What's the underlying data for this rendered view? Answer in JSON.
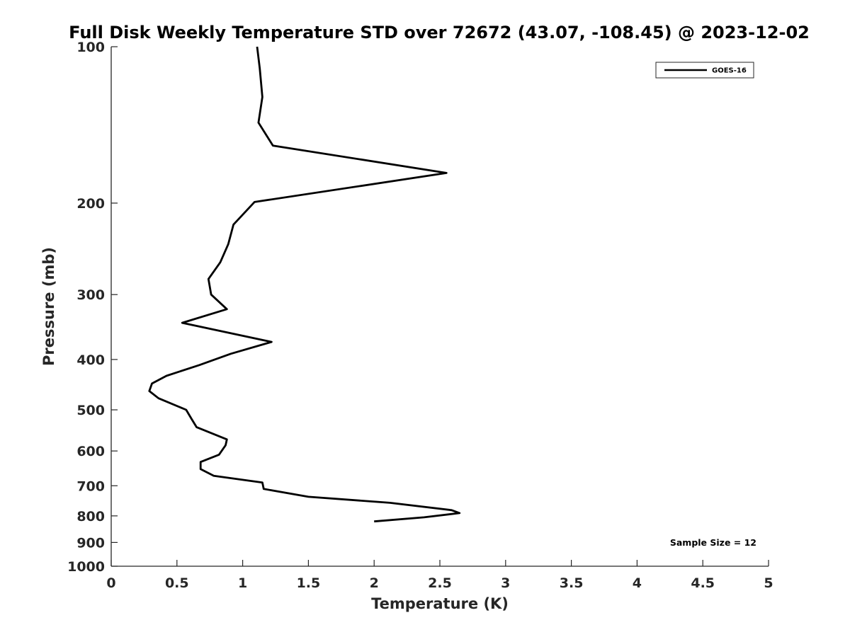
{
  "chart_data": {
    "type": "line",
    "title": "Full Disk Weekly Temperature STD over 72672 (43.07, -108.45) @ 2023-12-02",
    "xlabel": "Temperature (K)",
    "ylabel": "Pressure (mb)",
    "xlim": [
      0,
      5
    ],
    "ylim": [
      100,
      1000
    ],
    "y_scale": "log",
    "y_reversed": true,
    "x_ticks": [
      "0",
      "0.5",
      "1",
      "1.5",
      "2",
      "2.5",
      "3",
      "3.5",
      "4",
      "4.5",
      "5"
    ],
    "y_ticks": [
      "100",
      "200",
      "300",
      "400",
      "500",
      "600",
      "700",
      "800",
      "900",
      "1000"
    ],
    "grid": false,
    "legend_position": "top-right",
    "series": [
      {
        "name": "GOES-16",
        "color": "#000000",
        "x": [
          1.11,
          1.13,
          1.15,
          1.12,
          1.23,
          2.55,
          1.09,
          0.93,
          0.89,
          0.83,
          0.74,
          0.76,
          0.88,
          0.54,
          1.22,
          0.91,
          0.67,
          0.42,
          0.31,
          0.29,
          0.36,
          0.57,
          0.61,
          0.65,
          0.88,
          0.87,
          0.82,
          0.68,
          0.68,
          0.78,
          1.15,
          1.16,
          1.5,
          2.12,
          2.59,
          2.65,
          2.38,
          2.0
        ],
        "y": [
          100,
          110,
          125,
          140,
          155,
          175,
          199,
          220,
          240,
          260,
          280,
          300,
          320,
          340,
          370,
          390,
          410,
          430,
          445,
          460,
          475,
          500,
          520,
          540,
          570,
          585,
          610,
          630,
          650,
          670,
          690,
          710,
          735,
          755,
          780,
          790,
          805,
          820
        ]
      }
    ],
    "annotations": [
      "Sample Size = 12"
    ]
  }
}
